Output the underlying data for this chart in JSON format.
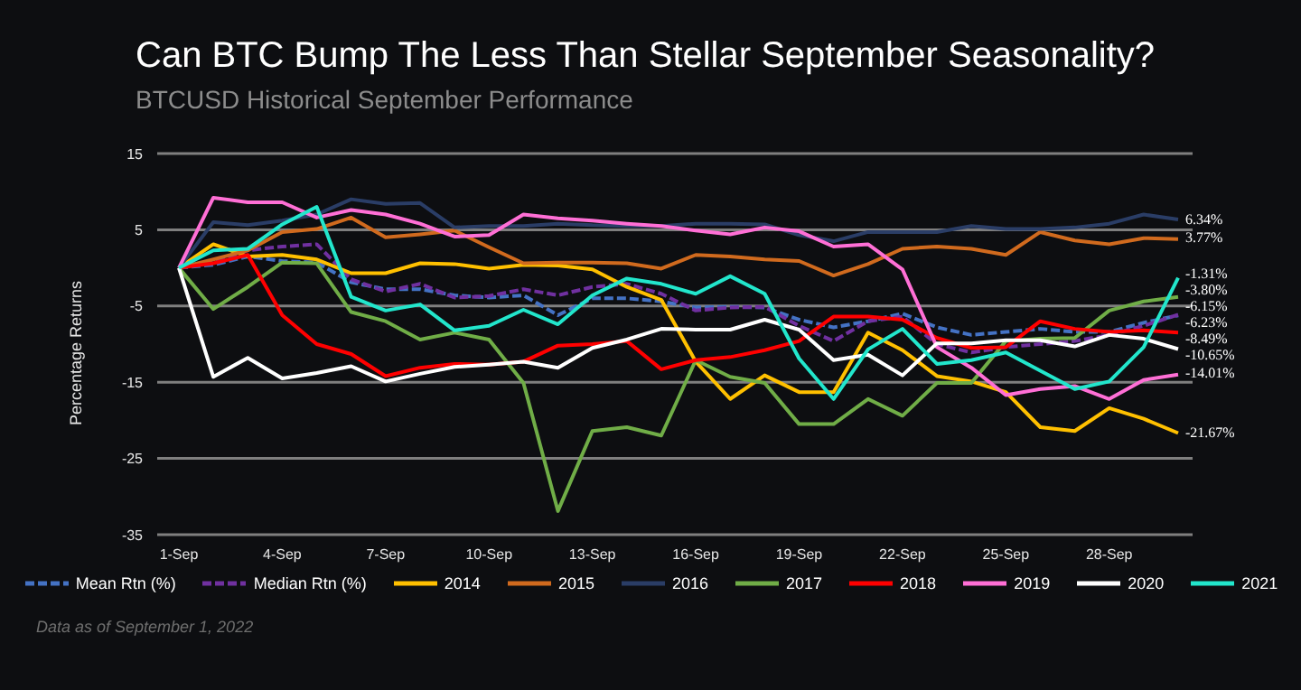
{
  "chart_data": {
    "type": "line",
    "title": "Can BTC Bump The Less Than Stellar September Seasonality?",
    "subtitle": "BTCUSD Historical September Performance",
    "ylabel": "Percentage Returns",
    "categories": [
      "1-Sep",
      null,
      null,
      "4-Sep",
      null,
      null,
      "7-Sep",
      null,
      null,
      "10-Sep",
      null,
      null,
      "13-Sep",
      null,
      null,
      "16-Sep",
      null,
      null,
      "19-Sep",
      null,
      null,
      "22-Sep",
      null,
      null,
      "25-Sep",
      null,
      null,
      "28-Sep",
      null,
      null
    ],
    "series": [
      {
        "name": "Mean Rtn (%)",
        "color": "#4472c4",
        "line_style": "dashed",
        "values": [
          0,
          0.4,
          1.5,
          0.9,
          0.7,
          -1.9,
          -2.8,
          -2.8,
          -3.6,
          -3.9,
          -3.6,
          -6.2,
          -4.0,
          -4.0,
          -4.4,
          -5.2,
          -5.1,
          -5.2,
          -6.8,
          -7.8,
          -7.0,
          -6.0,
          -7.8,
          -8.8,
          -8.4,
          -8.0,
          -8.4,
          -8.4,
          -7.2,
          -6.23
        ],
        "value_labels": [
          null,
          null,
          null,
          null,
          null,
          null,
          null,
          null,
          null,
          null,
          null,
          null,
          null,
          null,
          null,
          null,
          null,
          null,
          null,
          null,
          null,
          null,
          null,
          null,
          null,
          null,
          null,
          null,
          null,
          "-6.23%"
        ]
      },
      {
        "name": "Median Rtn (%)",
        "color": "#7030a0",
        "line_style": "dashed",
        "values": [
          0,
          0.7,
          2.3,
          2.8,
          3.1,
          -1.5,
          -3.1,
          -2.1,
          -3.9,
          -3.7,
          -2.8,
          -3.6,
          -2.5,
          -2.1,
          -3.4,
          -5.6,
          -5.2,
          -5.1,
          -7.6,
          -9.6,
          -7.0,
          -6.4,
          -10.0,
          -11.1,
          -10.4,
          -10.0,
          -9.6,
          -8.8,
          -7.6,
          -6.15
        ],
        "value_labels": [
          null,
          null,
          null,
          null,
          null,
          null,
          null,
          null,
          null,
          null,
          null,
          null,
          null,
          null,
          null,
          null,
          null,
          null,
          null,
          null,
          null,
          null,
          null,
          null,
          null,
          null,
          null,
          null,
          null,
          "-6.15%"
        ]
      },
      {
        "name": "2014",
        "color": "#ffc000",
        "values": [
          0,
          3.1,
          1.5,
          1.7,
          1.1,
          -0.7,
          -0.7,
          0.6,
          0.5,
          -0.1,
          0.4,
          0.3,
          -0.2,
          -2.5,
          -4.2,
          -12.3,
          -17.2,
          -14.1,
          -16.3,
          -16.3,
          -8.5,
          -10.8,
          -14.2,
          -14.9,
          -16.3,
          -20.9,
          -21.4,
          -18.4,
          -19.8,
          -21.67
        ],
        "value_labels": [
          null,
          null,
          null,
          null,
          null,
          null,
          null,
          null,
          null,
          null,
          null,
          null,
          null,
          null,
          null,
          null,
          null,
          null,
          null,
          null,
          null,
          null,
          null,
          null,
          null,
          null,
          null,
          null,
          null,
          "-21.67%"
        ]
      },
      {
        "name": "2015",
        "color": "#d06a1e",
        "values": [
          0,
          1.1,
          2.3,
          4.7,
          5.1,
          6.6,
          4.0,
          4.4,
          4.9,
          2.7,
          0.6,
          0.7,
          0.7,
          0.6,
          -0.1,
          1.7,
          1.5,
          1.1,
          0.9,
          -1.0,
          0.5,
          2.5,
          2.8,
          2.5,
          1.7,
          4.7,
          3.6,
          3.1,
          3.9,
          3.77
        ],
        "value_labels": [
          null,
          null,
          null,
          null,
          null,
          null,
          null,
          null,
          null,
          null,
          null,
          null,
          null,
          null,
          null,
          null,
          null,
          null,
          null,
          null,
          null,
          null,
          null,
          null,
          null,
          null,
          null,
          null,
          null,
          "3.77%"
        ]
      },
      {
        "name": "2016",
        "color": "#2a3d66",
        "values": [
          0,
          6.0,
          5.6,
          6.2,
          7.0,
          9.0,
          8.4,
          8.5,
          5.3,
          5.5,
          5.5,
          5.8,
          5.6,
          5.5,
          5.5,
          5.8,
          5.8,
          5.7,
          4.3,
          3.5,
          4.7,
          4.7,
          4.7,
          5.5,
          5.1,
          5.1,
          5.3,
          5.8,
          7.0,
          6.34
        ],
        "value_labels": [
          null,
          null,
          null,
          null,
          null,
          null,
          null,
          null,
          null,
          null,
          null,
          null,
          null,
          null,
          null,
          null,
          null,
          null,
          null,
          null,
          null,
          null,
          null,
          null,
          null,
          null,
          null,
          null,
          null,
          "6.34%"
        ]
      },
      {
        "name": "2017",
        "color": "#70ad47",
        "values": [
          0,
          -5.4,
          -2.5,
          0.7,
          0.6,
          -5.8,
          -7.0,
          -9.4,
          -8.5,
          -9.4,
          -15.1,
          -31.9,
          -21.4,
          -20.9,
          -22.0,
          -12.1,
          -14.3,
          -15.1,
          -20.5,
          -20.5,
          -17.2,
          -19.4,
          -15.1,
          -15.1,
          -9.6,
          -9.3,
          -9.2,
          -5.6,
          -4.4,
          -3.8
        ],
        "value_labels": [
          null,
          null,
          null,
          null,
          null,
          null,
          null,
          null,
          null,
          null,
          null,
          null,
          null,
          null,
          null,
          null,
          null,
          null,
          null,
          null,
          null,
          null,
          null,
          null,
          null,
          null,
          null,
          null,
          null,
          "-3.80%"
        ]
      },
      {
        "name": "2018",
        "color": "#ff0000",
        "values": [
          0,
          0.6,
          1.7,
          -6.2,
          -10.0,
          -11.3,
          -14.2,
          -13.1,
          -12.6,
          -12.7,
          -12.3,
          -10.2,
          -10.0,
          -9.6,
          -13.3,
          -12.1,
          -11.7,
          -10.8,
          -9.6,
          -6.4,
          -6.4,
          -6.8,
          -9.2,
          -10.5,
          -10.4,
          -7.0,
          -8.0,
          -8.4,
          -8.2,
          -8.49
        ],
        "value_labels": [
          null,
          null,
          null,
          null,
          null,
          null,
          null,
          null,
          null,
          null,
          null,
          null,
          null,
          null,
          null,
          null,
          null,
          null,
          null,
          null,
          null,
          null,
          null,
          null,
          null,
          null,
          null,
          null,
          null,
          "-8.49%"
        ]
      },
      {
        "name": "2019",
        "color": "#ff6fd6",
        "values": [
          0,
          9.2,
          8.6,
          8.6,
          6.6,
          7.6,
          7.0,
          5.8,
          4.1,
          4.3,
          7.0,
          6.5,
          6.2,
          5.8,
          5.5,
          4.9,
          4.4,
          5.3,
          4.8,
          2.8,
          3.1,
          -0.2,
          -10.4,
          -13.1,
          -16.7,
          -15.9,
          -15.5,
          -17.2,
          -14.7,
          -14.01
        ],
        "value_labels": [
          null,
          null,
          null,
          null,
          null,
          null,
          null,
          null,
          null,
          null,
          null,
          null,
          null,
          null,
          null,
          null,
          null,
          null,
          null,
          null,
          null,
          null,
          null,
          null,
          null,
          null,
          null,
          null,
          null,
          "-14.01%"
        ]
      },
      {
        "name": "2020",
        "color": "#ffffff",
        "values": [
          0,
          -14.3,
          -11.8,
          -14.5,
          -13.8,
          -12.9,
          -14.9,
          -13.9,
          -13.0,
          -12.7,
          -12.3,
          -13.1,
          -10.5,
          -9.4,
          -8.0,
          -8.1,
          -8.1,
          -6.8,
          -8.1,
          -12.1,
          -11.4,
          -14.1,
          -9.9,
          -9.9,
          -9.5,
          -9.5,
          -10.3,
          -8.8,
          -9.3,
          -10.65
        ],
        "value_labels": [
          null,
          null,
          null,
          null,
          null,
          null,
          null,
          null,
          null,
          null,
          null,
          null,
          null,
          null,
          null,
          null,
          null,
          null,
          null,
          null,
          null,
          null,
          null,
          null,
          null,
          null,
          null,
          null,
          null,
          "-10.65%"
        ]
      },
      {
        "name": "2021",
        "color": "#22e6cc",
        "values": [
          0,
          2.3,
          2.5,
          5.7,
          8.0,
          -3.8,
          -5.6,
          -4.8,
          -8.2,
          -7.6,
          -5.5,
          -7.4,
          -3.6,
          -1.4,
          -2.1,
          -3.4,
          -1.1,
          -3.4,
          -11.9,
          -17.2,
          -10.7,
          -8.0,
          -12.6,
          -12.1,
          -11.1,
          -13.5,
          -15.9,
          -14.9,
          -10.4,
          -1.31
        ],
        "value_labels": [
          null,
          null,
          null,
          null,
          null,
          null,
          null,
          null,
          null,
          null,
          null,
          null,
          null,
          null,
          null,
          null,
          null,
          null,
          null,
          null,
          null,
          null,
          null,
          null,
          null,
          null,
          null,
          null,
          null,
          "-1.31%"
        ]
      }
    ],
    "ylim": [
      -35,
      15
    ],
    "yticks": [
      -35,
      -25,
      -15,
      -5,
      5,
      15
    ],
    "grid": "y",
    "legend": "bottom",
    "marker": "none",
    "annotations": [
      "Data as of September 1, 2022"
    ]
  }
}
